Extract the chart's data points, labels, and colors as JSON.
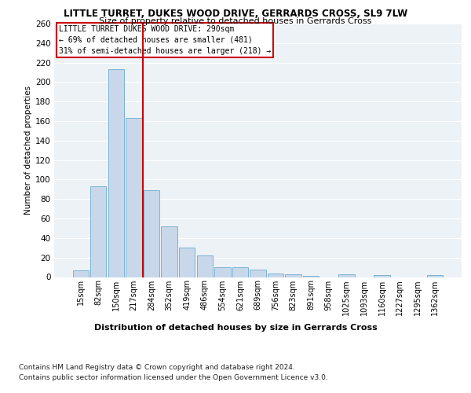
{
  "title": "LITTLE TURRET, DUKES WOOD DRIVE, GERRARDS CROSS, SL9 7LW",
  "subtitle": "Size of property relative to detached houses in Gerrards Cross",
  "xlabel": "Distribution of detached houses by size in Gerrards Cross",
  "ylabel": "Number of detached properties",
  "categories": [
    "15sqm",
    "82sqm",
    "150sqm",
    "217sqm",
    "284sqm",
    "352sqm",
    "419sqm",
    "486sqm",
    "554sqm",
    "621sqm",
    "689sqm",
    "756sqm",
    "823sqm",
    "891sqm",
    "958sqm",
    "1025sqm",
    "1093sqm",
    "1160sqm",
    "1227sqm",
    "1295sqm",
    "1362sqm"
  ],
  "values": [
    7,
    93,
    213,
    163,
    89,
    52,
    30,
    22,
    10,
    10,
    8,
    4,
    3,
    1,
    0,
    3,
    0,
    2,
    0,
    0,
    2
  ],
  "bar_color": "#c8d8ea",
  "bar_edge_color": "#6aaace",
  "vline_x_index": 4,
  "vline_color": "#cc0000",
  "annotation_box_color": "#cc0000",
  "annotation_lines": [
    "LITTLE TURRET DUKES WOOD DRIVE: 290sqm",
    "← 69% of detached houses are smaller (481)",
    "31% of semi-detached houses are larger (218) →"
  ],
  "ylim": [
    0,
    260
  ],
  "yticks": [
    0,
    20,
    40,
    60,
    80,
    100,
    120,
    140,
    160,
    180,
    200,
    220,
    240,
    260
  ],
  "footnote1": "Contains HM Land Registry data © Crown copyright and database right 2024.",
  "footnote2": "Contains public sector information licensed under the Open Government Licence v3.0.",
  "bg_color": "#edf2f7",
  "grid_color": "#ffffff"
}
